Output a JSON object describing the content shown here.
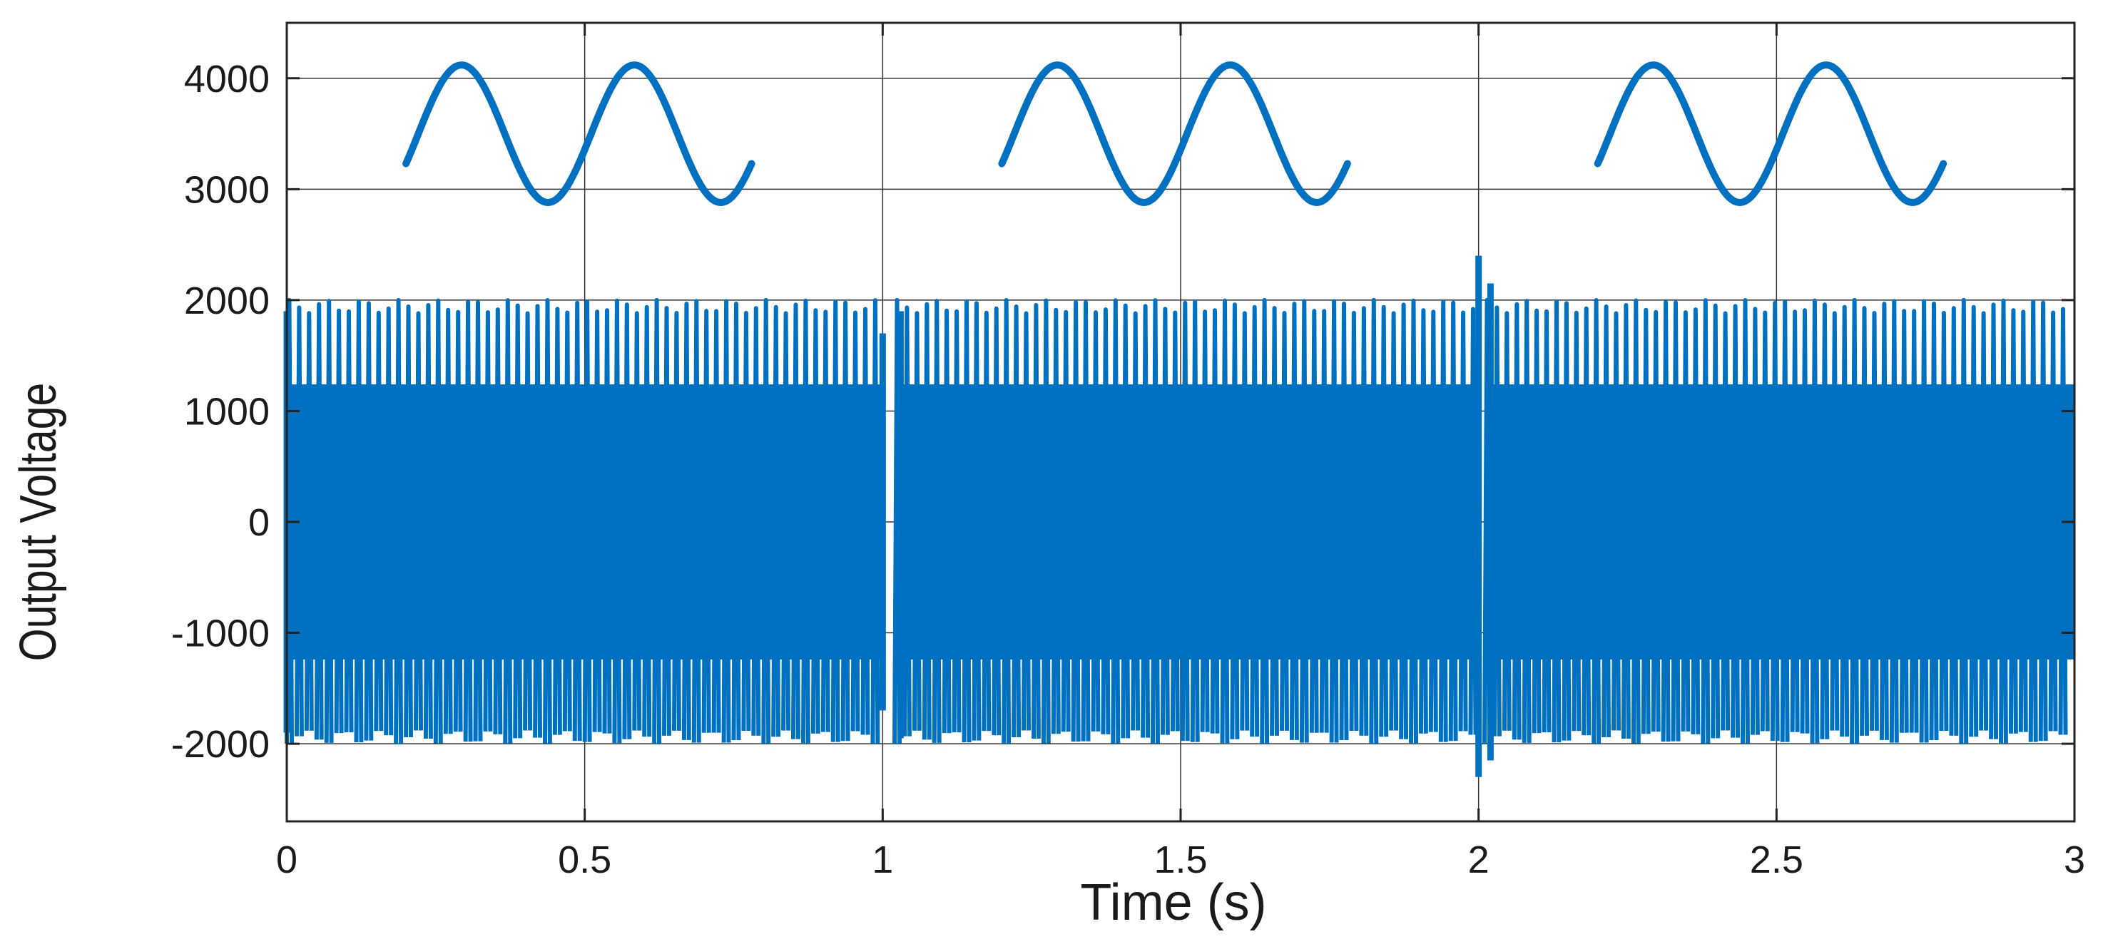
{
  "chart_data": {
    "type": "line",
    "title": "",
    "xlabel": "Time (s)",
    "ylabel": "Output Voltage",
    "xlim": [
      0,
      3
    ],
    "ylim": [
      -2700,
      4500
    ],
    "grid": true,
    "legend": "none",
    "series_color": "#0070c0",
    "grid_color": "#333333",
    "x_ticks": [
      {
        "value": 0,
        "label": "0"
      },
      {
        "value": 0.5,
        "label": "0.5"
      },
      {
        "value": 1,
        "label": "1"
      },
      {
        "value": 1.5,
        "label": "1.5"
      },
      {
        "value": 2,
        "label": "2"
      },
      {
        "value": 2.5,
        "label": "2.5"
      },
      {
        "value": 3,
        "label": "3"
      }
    ],
    "y_ticks": [
      {
        "value": -2000,
        "label": "-2000"
      },
      {
        "value": -1000,
        "label": "-1000"
      },
      {
        "value": 0,
        "label": "0"
      },
      {
        "value": 1000,
        "label": "1000"
      },
      {
        "value": 2000,
        "label": "2000"
      },
      {
        "value": 3000,
        "label": "3000"
      },
      {
        "value": 4000,
        "label": "4000"
      }
    ],
    "series": [
      {
        "kind": "oscillation_envelope",
        "description_free": true,
        "cycles_per_second": 60,
        "amplitude": 2000,
        "segments": [
          {
            "x_start": 0.0,
            "x_end": 1.0
          },
          {
            "x_start": 1.02,
            "x_end": 2.0
          },
          {
            "x_start": 2.01,
            "x_end": 3.0
          }
        ],
        "transients": [
          {
            "x": 0.0,
            "max": 1900,
            "min": -1900
          },
          {
            "x": 1.0,
            "max": 1700,
            "min": -1700
          },
          {
            "x": 1.03,
            "max": 1900,
            "min": -1950
          },
          {
            "x": 2.0,
            "max": 2400,
            "min": -2300
          },
          {
            "x": 2.02,
            "max": 2150,
            "min": -2150
          }
        ]
      },
      {
        "kind": "zoom_insets",
        "center": 3500,
        "amplitude": 620,
        "cycles": 2,
        "insets": [
          {
            "x_start": 0.2,
            "x_end": 0.78
          },
          {
            "x_start": 1.2,
            "x_end": 1.78
          },
          {
            "x_start": 2.2,
            "x_end": 2.78
          }
        ]
      }
    ]
  }
}
